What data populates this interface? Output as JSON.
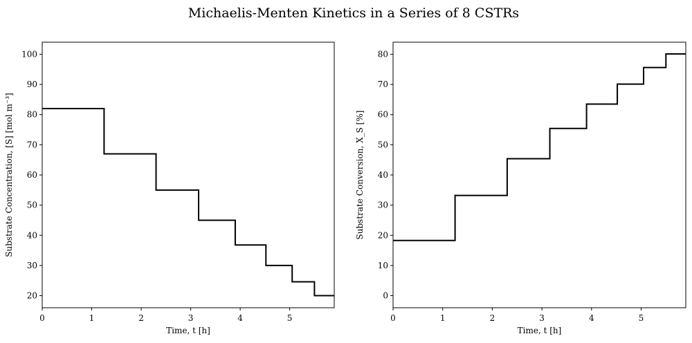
{
  "figure": {
    "title": "Michaelis-Menten Kinetics in a Series of 8 CSTRs"
  },
  "chart_data": [
    {
      "type": "line",
      "step": "post",
      "color": "#000000",
      "xlabel": "Time, t [h]",
      "ylabel": "Substrate Concentration, [S] [mol m⁻³]",
      "xlim": [
        0,
        5.9
      ],
      "ylim": [
        16,
        104
      ],
      "xticks": [
        0,
        1,
        2,
        3,
        4,
        5
      ],
      "yticks": [
        20,
        30,
        40,
        50,
        60,
        70,
        80,
        90,
        100
      ],
      "grid": false,
      "x": [
        0,
        1.25,
        2.3,
        3.16,
        3.9,
        4.52,
        5.05,
        5.5,
        5.9
      ],
      "y": [
        82.0,
        67.0,
        55.0,
        45.0,
        36.8,
        30.0,
        24.6,
        20.0,
        20.0
      ]
    },
    {
      "type": "line",
      "step": "post",
      "color": "#000000",
      "xlabel": "Time, t [h]",
      "ylabel": "Substrate Conversion, X_S [%]",
      "xlim": [
        0,
        5.9
      ],
      "ylim": [
        -4,
        84
      ],
      "xticks": [
        0,
        1,
        2,
        3,
        4,
        5
      ],
      "yticks": [
        0,
        10,
        20,
        30,
        40,
        50,
        60,
        70,
        80
      ],
      "grid": false,
      "x": [
        0,
        1.25,
        2.3,
        3.16,
        3.9,
        4.52,
        5.05,
        5.5,
        5.9
      ],
      "y": [
        18.3,
        33.2,
        45.4,
        55.4,
        63.5,
        70.1,
        75.6,
        80.1,
        80.1
      ]
    }
  ]
}
